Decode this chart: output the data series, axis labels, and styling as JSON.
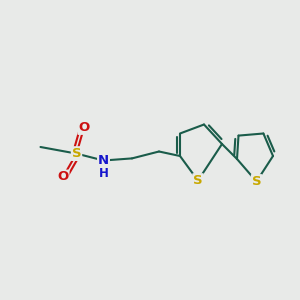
{
  "background_color": "#e8eae8",
  "bond_color": "#1a5c4a",
  "bond_width": 1.5,
  "S_thiophene_color": "#c8a800",
  "S_sulfonyl_color": "#c8a800",
  "N_color": "#1515cc",
  "O_color": "#cc1111",
  "font_size": 9.5,
  "figsize": [
    3.0,
    3.0
  ],
  "dpi": 100,
  "xlim": [
    0,
    10
  ],
  "ylim": [
    0,
    10
  ]
}
